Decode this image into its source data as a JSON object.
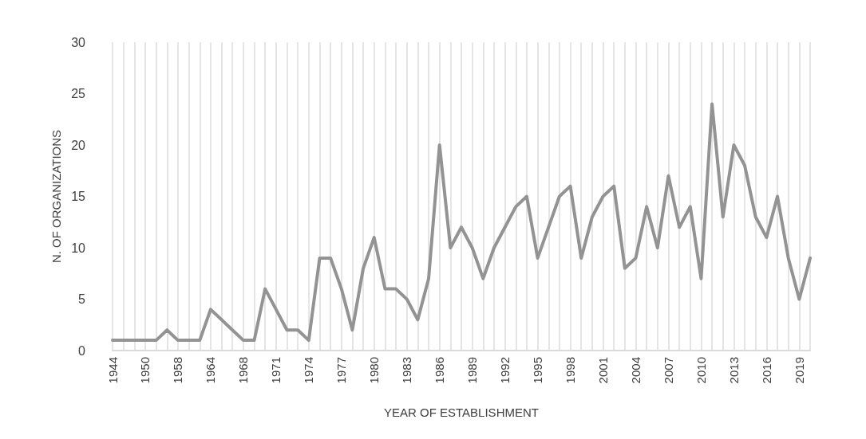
{
  "chart_data": {
    "type": "line",
    "xlabel": "YEAR OF ESTABLISHMENT",
    "ylabel": "N. OF ORGANIZATIONS",
    "categories": [
      "1944",
      null,
      null,
      "1950",
      null,
      null,
      "1958",
      null,
      null,
      "1964",
      null,
      null,
      "1968",
      null,
      null,
      "1971",
      null,
      null,
      "1974",
      null,
      null,
      "1977",
      null,
      null,
      "1980",
      null,
      null,
      "1983",
      null,
      null,
      "1986",
      null,
      null,
      "1989",
      null,
      null,
      "1992",
      null,
      null,
      "1995",
      null,
      null,
      "1998",
      null,
      null,
      "2001",
      null,
      null,
      "2004",
      null,
      null,
      "2007",
      null,
      null,
      "2010",
      null,
      null,
      "2013",
      null,
      null,
      "2016",
      null,
      null,
      "2019",
      null
    ],
    "series": [
      {
        "color": "#939393",
        "values": [
          1,
          1,
          1,
          1,
          1,
          2,
          1,
          1,
          1,
          4,
          3,
          2,
          1,
          1,
          6,
          4,
          2,
          2,
          1,
          9,
          9,
          6,
          2,
          8,
          11,
          6,
          6,
          5,
          3,
          7,
          20,
          10,
          12,
          10,
          7,
          10,
          12,
          14,
          15,
          9,
          12,
          15,
          16,
          9,
          13,
          15,
          16,
          8,
          9,
          14,
          10,
          17,
          12,
          14,
          7,
          24,
          13,
          20,
          18,
          13,
          11,
          15,
          9,
          5,
          9
        ]
      }
    ],
    "ylim": [
      0,
      30
    ],
    "yticks": [
      0,
      5,
      10,
      15,
      20,
      25,
      30
    ],
    "grid": "x",
    "marker": "none",
    "line_style": "solid"
  }
}
